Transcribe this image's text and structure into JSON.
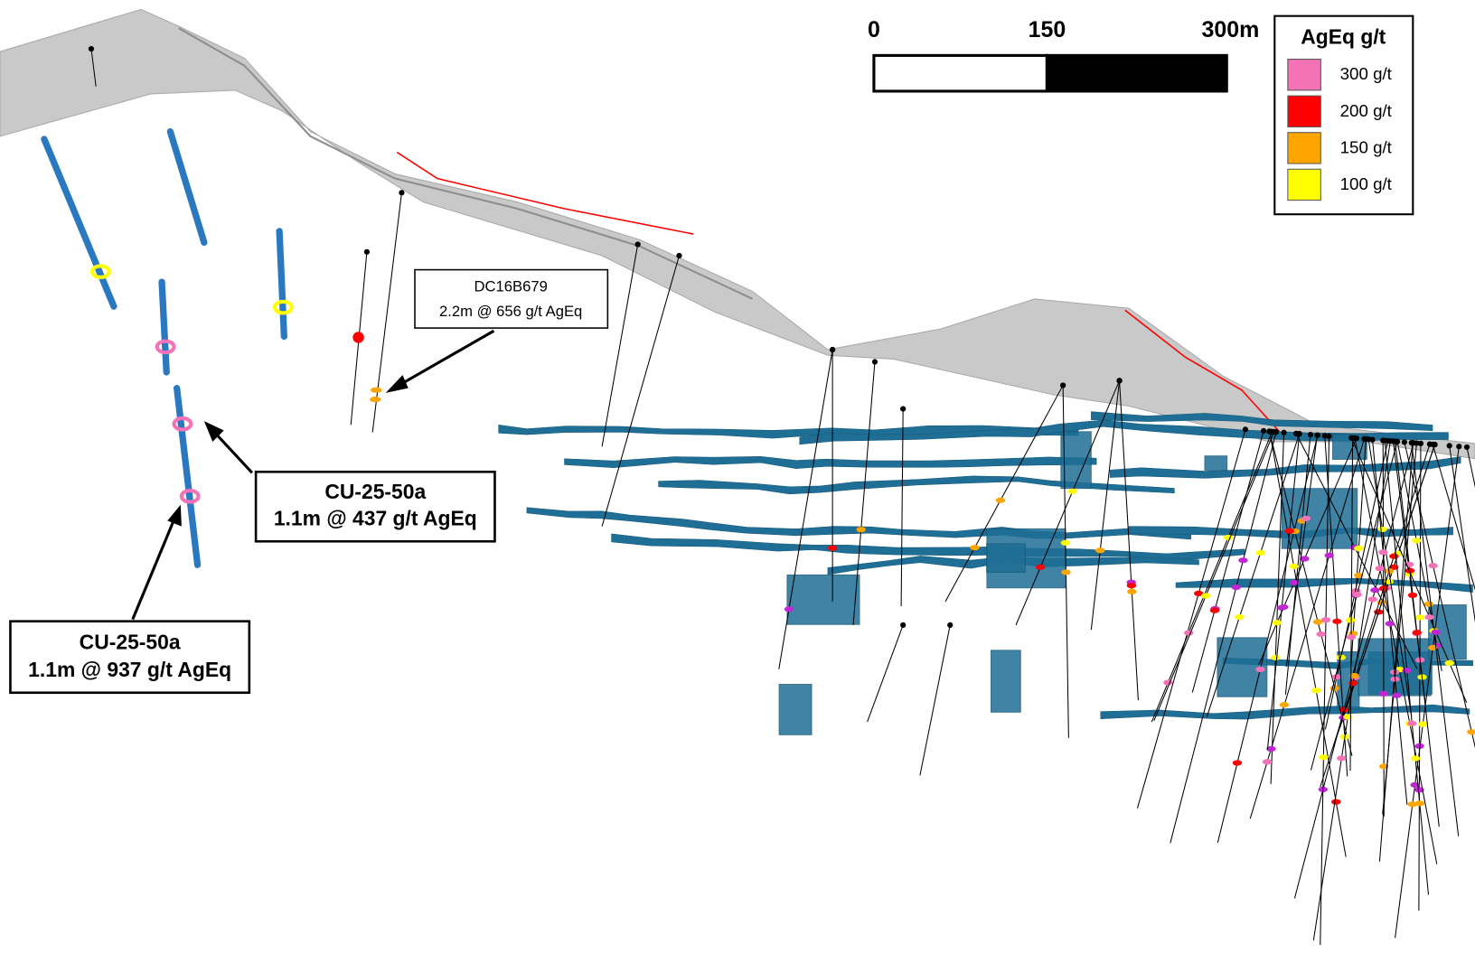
{
  "scale_bar": {
    "labels": [
      "0",
      "150",
      "300m"
    ]
  },
  "legend": {
    "title": "AgEq g/t",
    "items": [
      {
        "label": "300 g/t",
        "color": "#f472b6"
      },
      {
        "label": "200 g/t",
        "color": "#ff0000"
      },
      {
        "label": "150 g/t",
        "color": "#ffa500"
      },
      {
        "label": "100 g/t",
        "color": "#ffff00"
      }
    ]
  },
  "callouts": [
    {
      "hole": "DC16B679",
      "interval": "2.2m @ 656 g/t AgEq"
    },
    {
      "hole": "CU-25-50a",
      "interval": "1.1m @ 437 g/t AgEq"
    },
    {
      "hole": "CU-25-50a",
      "interval": "1.1m @ 937 g/t AgEq"
    }
  ]
}
